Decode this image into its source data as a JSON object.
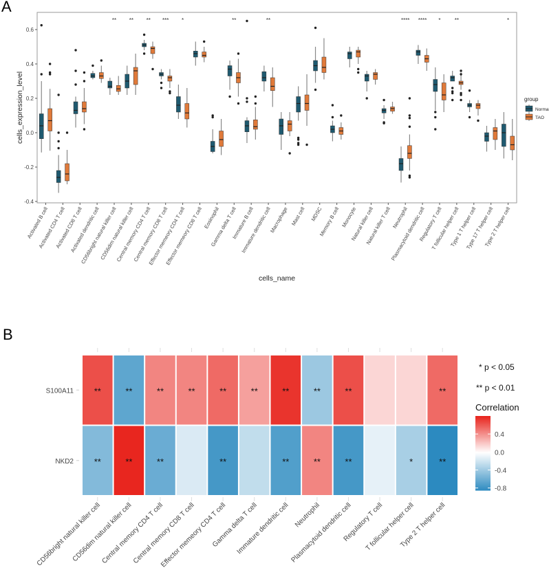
{
  "panels": {
    "a": "A",
    "b": "B"
  },
  "chart_data": [
    {
      "type": "boxplot",
      "xlabel": "cells_name",
      "ylabel": "cells_expression_level",
      "ylim": [
        -0.4,
        0.7
      ],
      "yticks": [
        -0.4,
        -0.2,
        0.0,
        0.2,
        0.4,
        0.6
      ],
      "ytick_labels": [
        "-0.4",
        "-0.2",
        "0.0",
        "0.2",
        "0.4",
        "0.6"
      ],
      "grid": false,
      "legend": {
        "title": "group",
        "placement": "right",
        "entries": [
          "Normal",
          "TAO"
        ]
      },
      "colors": {
        "Normal": "#1f5a70",
        "TAO": "#e07a3a"
      },
      "categories": [
        "Activated B cell",
        "Activated CD4 T cell",
        "Activated CD8 T cell",
        "Activated dendritic cell",
        "CD56bright natural killer cell",
        "CD56dim natural killer cell",
        "Central memory CD4 T cell",
        "Central memory CD8 T cell",
        "Effector memeory CD4 T cell",
        "Effector memeory CD8 T cell",
        "Eosinophil",
        "Gamma delta T cell",
        "Immature  B cell",
        "Immature dendritic cell",
        "Macrophage",
        "Mast cell",
        "MDSC",
        "Memory B cell",
        "Monocyte",
        "Natural killer cell",
        "Natural killer T cell",
        "Neutrophil",
        "Plasmacytoid dendritic cell",
        "Regulatory T cell",
        "T follicular helper cell",
        "Type 1 T helper cell",
        "Type 17 T helper cell",
        "Type 2 T helper cell"
      ],
      "significance": [
        "",
        "",
        "",
        "",
        "**",
        "**",
        "**",
        "***",
        "*",
        "",
        "",
        "**",
        "",
        "**",
        "",
        "",
        "",
        "",
        "",
        "",
        "",
        "****",
        "****",
        "*",
        "**",
        "",
        "",
        "*"
      ],
      "series": [
        {
          "name": "Normal",
          "boxes": [
            {
              "low": -0.115,
              "q1": -0.035,
              "med": 0.04,
              "q3": 0.11,
              "high": 0.3,
              "out": [
                0.625,
                0.34
              ]
            },
            {
              "low": -0.35,
              "q1": -0.29,
              "med": -0.26,
              "q3": -0.22,
              "high": -0.13,
              "out": [
                0.22,
                0.0,
                -0.05,
                -0.09
              ]
            },
            {
              "low": 0.03,
              "q1": 0.11,
              "med": 0.13,
              "q3": 0.18,
              "high": 0.21,
              "out": [
                0.48,
                0.36,
                0.28
              ]
            },
            {
              "low": 0.31,
              "q1": 0.32,
              "med": 0.33,
              "q3": 0.345,
              "high": 0.36,
              "out": [
                0.39
              ]
            },
            {
              "low": 0.22,
              "q1": 0.26,
              "med": 0.27,
              "q3": 0.3,
              "high": 0.32,
              "out": []
            },
            {
              "low": 0.22,
              "q1": 0.26,
              "med": 0.3,
              "q3": 0.34,
              "high": 0.39,
              "out": []
            },
            {
              "low": 0.48,
              "q1": 0.5,
              "med": 0.51,
              "q3": 0.52,
              "high": 0.54,
              "out": [
                0.57,
                0.46
              ]
            },
            {
              "low": 0.31,
              "q1": 0.33,
              "med": 0.34,
              "q3": 0.35,
              "high": 0.37,
              "out": [
                0.29,
                0.26
              ]
            },
            {
              "low": 0.08,
              "q1": 0.12,
              "med": 0.16,
              "q3": 0.21,
              "high": 0.28,
              "out": []
            },
            {
              "low": 0.39,
              "q1": 0.44,
              "med": 0.46,
              "q3": 0.475,
              "high": 0.53,
              "out": []
            },
            {
              "low": -0.12,
              "q1": -0.11,
              "med": -0.08,
              "q3": -0.05,
              "high": 0.02,
              "out": [
                0.1,
                0.09
              ]
            },
            {
              "low": 0.25,
              "q1": 0.33,
              "med": 0.37,
              "q3": 0.39,
              "high": 0.42,
              "out": [
                0.21
              ]
            },
            {
              "low": -0.06,
              "q1": 0.005,
              "med": 0.04,
              "q3": 0.07,
              "high": 0.09,
              "out": [
                0.65,
                0.2,
                0.18
              ]
            },
            {
              "low": 0.24,
              "q1": 0.3,
              "med": 0.32,
              "q3": 0.355,
              "high": 0.39,
              "out": []
            },
            {
              "low": -0.1,
              "q1": -0.01,
              "med": 0.04,
              "q3": 0.08,
              "high": 0.12,
              "out": []
            },
            {
              "low": 0.07,
              "q1": 0.12,
              "med": 0.17,
              "q3": 0.21,
              "high": 0.27,
              "out": [
                -0.03,
                -0.04,
                -0.06,
                -0.07
              ]
            },
            {
              "low": 0.29,
              "q1": 0.36,
              "med": 0.39,
              "q3": 0.42,
              "high": 0.5,
              "out": [
                0.61,
                0.25
              ]
            },
            {
              "low": -0.05,
              "q1": 0.0,
              "med": 0.02,
              "q3": 0.04,
              "high": 0.07,
              "out": [
                0.16,
                0.09
              ]
            },
            {
              "low": 0.38,
              "q1": 0.43,
              "med": 0.46,
              "q3": 0.47,
              "high": 0.5,
              "out": []
            },
            {
              "low": 0.24,
              "q1": 0.3,
              "med": 0.33,
              "q3": 0.34,
              "high": 0.36,
              "out": [
                0.2
              ]
            },
            {
              "low": 0.08,
              "q1": 0.115,
              "med": 0.13,
              "q3": 0.14,
              "high": 0.16,
              "out": [
                0.19,
                0.06,
                0.055
              ]
            },
            {
              "low": -0.29,
              "q1": -0.22,
              "med": -0.18,
              "q3": -0.15,
              "high": -0.08,
              "out": []
            },
            {
              "low": 0.4,
              "q1": 0.45,
              "med": 0.47,
              "q3": 0.48,
              "high": 0.51,
              "out": []
            },
            {
              "low": 0.13,
              "q1": 0.24,
              "med": 0.28,
              "q3": 0.31,
              "high": 0.38,
              "out": [
                0.12,
                0.09,
                0.02
              ]
            },
            {
              "low": 0.3,
              "q1": 0.3,
              "med": 0.32,
              "q3": 0.33,
              "high": 0.36,
              "out": [
                0.26,
                0.24,
                0.23,
                0.19
              ]
            },
            {
              "low": 0.12,
              "q1": 0.15,
              "med": 0.16,
              "q3": 0.17,
              "high": 0.19,
              "out": [
                0.245,
                0.09
              ]
            },
            {
              "low": -0.11,
              "q1": -0.05,
              "med": -0.02,
              "q3": 0.0,
              "high": 0.04,
              "out": []
            },
            {
              "low": -0.15,
              "q1": -0.08,
              "med": 0.0,
              "q3": 0.05,
              "high": 0.12,
              "out": []
            }
          ]
        },
        {
          "name": "TAO",
          "boxes": [
            {
              "low": -0.105,
              "q1": 0.01,
              "med": 0.07,
              "q3": 0.14,
              "high": 0.255,
              "out": [
                0.4,
                0.35,
                0.34
              ]
            },
            {
              "low": -0.3,
              "q1": -0.28,
              "med": -0.24,
              "q3": -0.18,
              "high": -0.1,
              "out": [
                0.0
              ]
            },
            {
              "low": 0.05,
              "q1": 0.12,
              "med": 0.14,
              "q3": 0.18,
              "high": 0.26,
              "out": [
                0.35,
                0.3,
                0.02
              ]
            },
            {
              "low": 0.29,
              "q1": 0.315,
              "med": 0.33,
              "q3": 0.35,
              "high": 0.39,
              "out": [
                0.42
              ]
            },
            {
              "low": 0.22,
              "q1": 0.24,
              "med": 0.255,
              "q3": 0.275,
              "high": 0.33,
              "out": []
            },
            {
              "low": 0.22,
              "q1": 0.28,
              "med": 0.36,
              "q3": 0.38,
              "high": 0.46,
              "out": []
            },
            {
              "low": 0.43,
              "q1": 0.46,
              "med": 0.49,
              "q3": 0.5,
              "high": 0.53,
              "out": [
                0.37
              ]
            },
            {
              "low": 0.26,
              "q1": 0.3,
              "med": 0.32,
              "q3": 0.33,
              "high": 0.37,
              "out": [
                0.24,
                0.23
              ]
            },
            {
              "low": 0.03,
              "q1": 0.08,
              "med": 0.115,
              "q3": 0.17,
              "high": 0.26,
              "out": []
            },
            {
              "low": 0.41,
              "q1": 0.44,
              "med": 0.45,
              "q3": 0.47,
              "high": 0.5,
              "out": [
                0.53
              ]
            },
            {
              "low": -0.13,
              "q1": -0.08,
              "med": -0.04,
              "q3": 0.01,
              "high": 0.08,
              "out": []
            },
            {
              "low": 0.21,
              "q1": 0.29,
              "med": 0.32,
              "q3": 0.35,
              "high": 0.43,
              "out": [
                0.46,
                0.17
              ]
            },
            {
              "low": -0.04,
              "q1": 0.02,
              "med": 0.035,
              "q3": 0.075,
              "high": 0.15,
              "out": [
                0.21,
                0.17
              ]
            },
            {
              "low": 0.15,
              "q1": 0.245,
              "med": 0.27,
              "q3": 0.32,
              "high": 0.38,
              "out": []
            },
            {
              "low": -0.02,
              "q1": 0.01,
              "med": 0.05,
              "q3": 0.07,
              "high": 0.12,
              "out": [
                -0.12
              ]
            },
            {
              "low": 0.04,
              "q1": 0.13,
              "med": 0.17,
              "q3": 0.22,
              "high": 0.34,
              "out": [
                -0.07
              ]
            },
            {
              "low": 0.31,
              "q1": 0.35,
              "med": 0.38,
              "q3": 0.44,
              "high": 0.55,
              "out": []
            },
            {
              "low": -0.04,
              "q1": -0.01,
              "med": 0.01,
              "q3": 0.03,
              "high": 0.06,
              "out": [
                0.1
              ]
            },
            {
              "low": 0.4,
              "q1": 0.44,
              "med": 0.47,
              "q3": 0.48,
              "high": 0.5,
              "out": [
                0.37,
                0.35
              ]
            },
            {
              "low": 0.28,
              "q1": 0.31,
              "med": 0.34,
              "q3": 0.35,
              "high": 0.37,
              "out": []
            },
            {
              "low": 0.11,
              "q1": 0.125,
              "med": 0.14,
              "q3": 0.15,
              "high": 0.18,
              "out": []
            },
            {
              "low": -0.22,
              "q1": -0.15,
              "med": -0.12,
              "q3": -0.075,
              "high": -0.01,
              "out": [
                0.2,
                0.1,
                0.085,
                0.035,
                -0.25,
                -0.26
              ]
            },
            {
              "low": 0.36,
              "q1": 0.41,
              "med": 0.43,
              "q3": 0.45,
              "high": 0.49,
              "out": []
            },
            {
              "low": 0.12,
              "q1": 0.19,
              "med": 0.22,
              "q3": 0.29,
              "high": 0.34,
              "out": []
            },
            {
              "low": 0.25,
              "q1": 0.28,
              "med": 0.29,
              "q3": 0.3,
              "high": 0.35,
              "out": [
                0.36,
                0.34,
                0.23,
                0.22,
                0.19
              ]
            },
            {
              "low": 0.1,
              "q1": 0.14,
              "med": 0.16,
              "q3": 0.17,
              "high": 0.19,
              "out": [
                0.07
              ]
            },
            {
              "low": -0.1,
              "q1": -0.04,
              "med": 0.01,
              "q3": 0.03,
              "high": 0.08,
              "out": []
            },
            {
              "low": -0.16,
              "q1": -0.1,
              "med": -0.07,
              "q3": -0.02,
              "high": 0.08,
              "out": []
            }
          ]
        }
      ]
    },
    {
      "type": "heatmap",
      "rows": [
        "S100A11",
        "NKD2"
      ],
      "columns": [
        "CD56bright natural killer cell",
        "CD56dim natural killer cell",
        "Central memory CD4 T cell",
        "Central memory CD8 T cell",
        "Effector memeory CD4 T cell",
        "Gamma delta T cell",
        "Immature dendritic cell",
        "Neutrophil",
        "Plasmacytoid dendritic cell",
        "Regulatory T cell",
        "T follicular helper cell",
        "Type 2 T helper cell"
      ],
      "values": [
        [
          0.65,
          -0.65,
          0.45,
          0.45,
          0.55,
          0.35,
          0.75,
          -0.4,
          0.65,
          0.15,
          0.15,
          0.55
        ],
        [
          -0.5,
          0.8,
          -0.6,
          -0.15,
          -0.75,
          -0.25,
          -0.7,
          0.45,
          -0.75,
          -0.1,
          -0.35,
          -0.85
        ]
      ],
      "stars": [
        [
          "**",
          "**",
          "**",
          "**",
          "**",
          "**",
          "**",
          "**",
          "**",
          "",
          "",
          "**"
        ],
        [
          "**",
          "**",
          "**",
          "",
          "**",
          "",
          "**",
          "**",
          "**",
          "",
          "*",
          "**"
        ]
      ],
      "annotations": [
        "* p < 0.05",
        "** p < 0.01"
      ],
      "colorbar": {
        "title": "Correlation",
        "range": [
          -0.85,
          0.8
        ],
        "ticks": [
          0.4,
          0.0,
          -0.4,
          -0.8
        ],
        "tick_labels": [
          "0.4",
          "0.0",
          "-0.4",
          "-0.8"
        ],
        "low_color": "#2c8ac0",
        "mid_color": "#ffffff",
        "high_color": "#e8261f"
      }
    }
  ]
}
